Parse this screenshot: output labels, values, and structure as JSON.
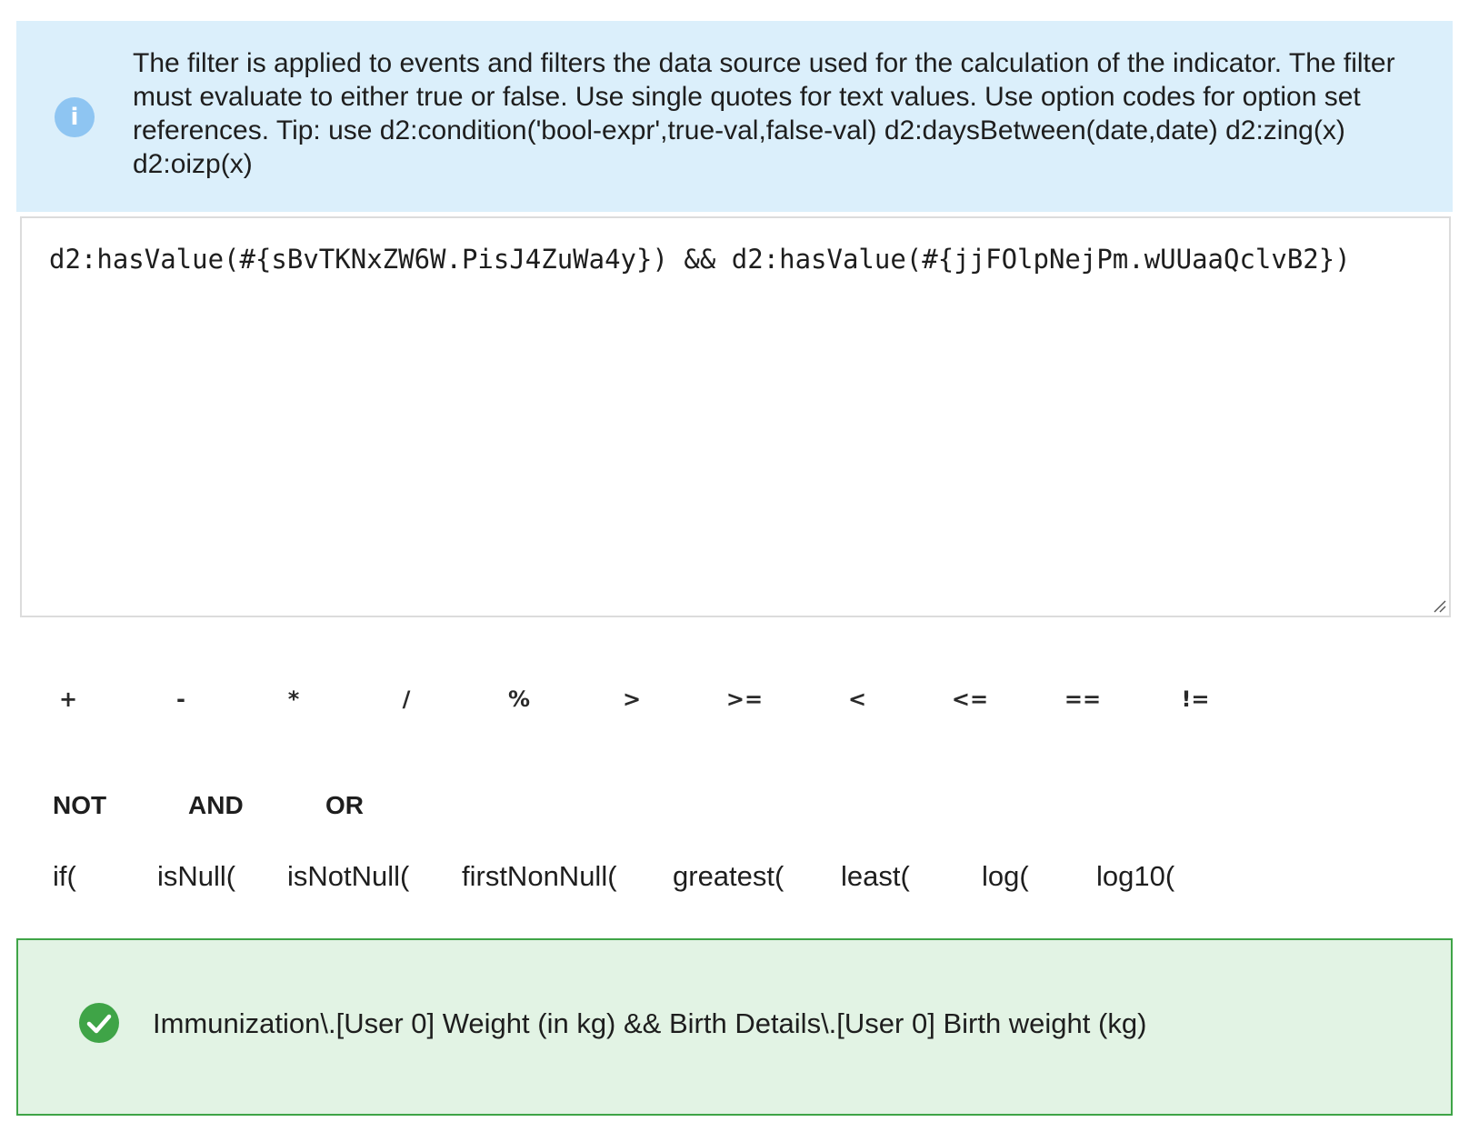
{
  "info": {
    "icon": "info-icon",
    "icon_glyph": "i",
    "text": "The filter is applied to events and filters the data source used for the calculation of the indicator. The filter must evaluate to either true or false. Use single quotes for text values. Use option codes for option set references. Tip: use d2:condition('bool-expr',true-val,false-val) d2:daysBetween(date,date) d2:zing(x) d2:oizp(x)"
  },
  "editor": {
    "value": "d2:hasValue(#{sBvTKNxZW6W.PisJ4ZuWa4y}) && d2:hasValue(#{jjFOlpNejPm.wUUaaQclvB2})"
  },
  "operators": [
    "+",
    "-",
    "*",
    "/",
    "%",
    ">",
    ">=",
    "<",
    "<=",
    "==",
    "!="
  ],
  "logical": [
    "NOT",
    "AND",
    "OR"
  ],
  "functions": [
    "if(",
    "isNull(",
    "isNotNull(",
    "firstNonNull(",
    "greatest(",
    "least(",
    "log(",
    "log10("
  ],
  "result": {
    "icon": "check-circle-icon",
    "text": "Immunization\\.[User 0] Weight (in kg) && Birth Details\\.[User 0] Birth weight (kg)"
  },
  "colors": {
    "info_bg": "#dbeffb",
    "info_icon": "#8ec5f2",
    "success_bg": "#e2f3e4",
    "success_border": "#3fa447",
    "success_icon": "#3fa447"
  }
}
